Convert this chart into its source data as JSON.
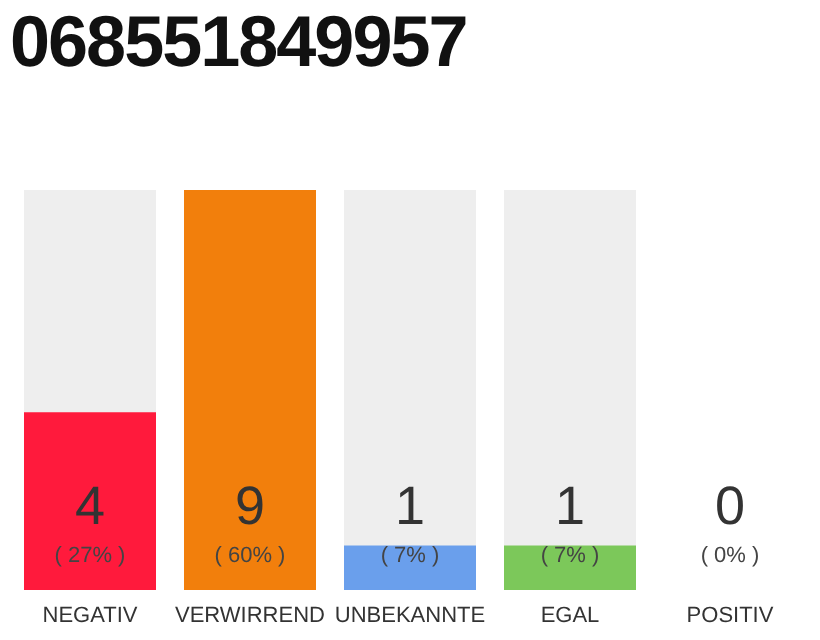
{
  "chart_data": {
    "type": "bar",
    "title": "068551849957",
    "categories": [
      "NEGATIV",
      "VERWIRREND",
      "UNBEKANNTE",
      "EGAL",
      "POSITIV"
    ],
    "values": [
      4,
      9,
      1,
      1,
      0
    ],
    "colors": [
      "#ff1a3c",
      "#f27f0c",
      "#6a9fec",
      "#7cc85a",
      "#cccccc"
    ],
    "ylim": [
      0,
      9
    ],
    "data_labels": true,
    "tick_labels": "x",
    "grid": false,
    "legend": false,
    "annotations": [
      "( 27% )",
      "( 60% )",
      "( 7% )",
      "( 7% )",
      "( 0% )"
    ]
  }
}
